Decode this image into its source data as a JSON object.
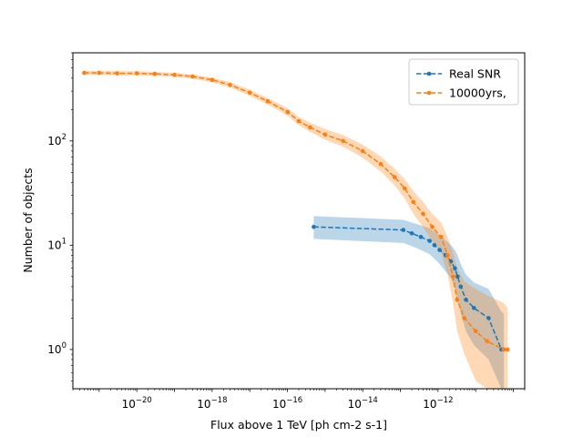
{
  "chart_data": {
    "type": "line",
    "x_scale": "log",
    "y_scale": "log",
    "xlim": [
      2e-22,
      2e-10
    ],
    "ylim": [
      0.42,
      700
    ],
    "xlabel": "Flux above 1 TeV [ph cm-2 s-1]",
    "ylabel": "Number of objects",
    "x_tick_labels": [
      {
        "exp": -20,
        "label": "10",
        "sup": "−20"
      },
      {
        "exp": -18,
        "label": "10",
        "sup": "−18"
      },
      {
        "exp": -16,
        "label": "10",
        "sup": "−16"
      },
      {
        "exp": -14,
        "label": "10",
        "sup": "−14"
      },
      {
        "exp": -12,
        "label": "10",
        "sup": "−12"
      }
    ],
    "y_tick_labels": [
      {
        "exp": 0,
        "label": "10",
        "sup": "0"
      },
      {
        "exp": 1,
        "label": "10",
        "sup": "1"
      },
      {
        "exp": 2,
        "label": "10",
        "sup": "2"
      }
    ],
    "legend": {
      "position": "upper-right"
    },
    "series": [
      {
        "name": "Real SNR",
        "color": "#1f77b4",
        "band_color": "#1f77b4",
        "x": [
          5e-16,
          1.2e-13,
          2e-13,
          3.5e-13,
          6e-13,
          8e-13,
          1.1e-12,
          1.6e-12,
          2.2e-12,
          2.8e-12,
          3.3e-12,
          4e-12,
          5.5e-12,
          9e-12,
          2.2e-11,
          4.8e-11,
          5.6e-11
        ],
        "y": [
          15,
          14,
          13,
          12,
          11,
          10,
          9,
          8,
          7,
          6,
          5,
          4,
          3,
          2.5,
          2,
          1,
          1
        ],
        "y_low": [
          11.5,
          10.5,
          9.8,
          9,
          8.2,
          7.4,
          6.6,
          5.6,
          4.8,
          3.8,
          3,
          2.2,
          1.5,
          1.1,
          0.8,
          0.42,
          0.42
        ],
        "y_high": [
          19,
          17.5,
          16.5,
          15.5,
          14.5,
          13.5,
          12.5,
          11.2,
          10,
          9,
          8,
          6.6,
          5.2,
          4.4,
          3.8,
          2.3,
          2.2
        ]
      },
      {
        "name": "10000yrs,",
        "color": "#ff7f0e",
        "band_color": "#ff7f0e",
        "x": [
          4e-22,
          1e-21,
          3e-21,
          1e-20,
          3e-20,
          1e-19,
          3e-19,
          1e-18,
          3e-18,
          1e-17,
          3e-17,
          1e-16,
          2e-16,
          4e-16,
          1e-15,
          3e-15,
          1e-14,
          3e-14,
          7e-14,
          1.3e-13,
          2.2e-13,
          4e-13,
          7e-13,
          1.2e-12,
          1.8e-12,
          2.5e-12,
          3.2e-12,
          5e-12,
          1e-11,
          2e-11,
          5.5e-11,
          7e-11
        ],
        "y": [
          450,
          450,
          445,
          445,
          440,
          430,
          415,
          385,
          345,
          290,
          240,
          190,
          155,
          135,
          115,
          100,
          80,
          60,
          45,
          35,
          26,
          20,
          15,
          12,
          8,
          5,
          3,
          2,
          1.5,
          1.2,
          1,
          1
        ],
        "y_low": [
          430,
          430,
          425,
          425,
          420,
          410,
          395,
          365,
          325,
          272,
          224,
          175,
          142,
          122,
          102,
          88,
          69,
          51,
          37.5,
          28,
          20,
          15,
          11,
          8.5,
          5.2,
          2.8,
          1.5,
          0.9,
          0.5,
          0.42,
          0.42,
          0.42
        ],
        "y_high": [
          470,
          470,
          465,
          465,
          460,
          450,
          435,
          405,
          365,
          310,
          258,
          206,
          170,
          150,
          130,
          114,
          92,
          71,
          54,
          43,
          33,
          26,
          20,
          16.5,
          12,
          8.5,
          6,
          4.5,
          3.8,
          3.3,
          2.8,
          2.5
        ]
      }
    ]
  }
}
